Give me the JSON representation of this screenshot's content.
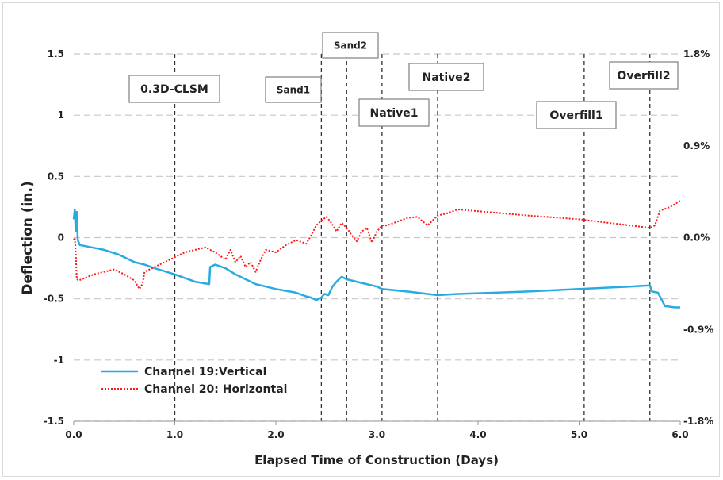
{
  "chart_data": {
    "type": "line",
    "title": "",
    "xlabel": "Elapsed Time of Construction (Days)",
    "ylabel": "Deflection  (in.)",
    "xlim": [
      0,
      6
    ],
    "ylim": [
      -1.5,
      1.5
    ],
    "x_ticks": [
      "0.0",
      "1.0",
      "2.0",
      "3.0",
      "4.0",
      "5.0",
      "6.0"
    ],
    "y_ticks": [
      "1.5",
      "1",
      "0.5",
      "0",
      "-0.5",
      "-1",
      "-1.5"
    ],
    "y2lim": [
      -1.8,
      1.8
    ],
    "y2_ticks": [
      "1.8%",
      "0.9%",
      "0.0%",
      "-0.9%",
      "-1.8%"
    ],
    "grid": true,
    "legend_position": "bottom-left",
    "phases": [
      {
        "label": "0.3D-CLSM",
        "x": 1.0
      },
      {
        "label": "Sand1",
        "x": 2.45
      },
      {
        "label": "Sand2",
        "x": 2.7
      },
      {
        "label": "Native1",
        "x": 3.05
      },
      {
        "label": "Native2",
        "x": 3.6
      },
      {
        "label": "Overfill1",
        "x": 5.05
      },
      {
        "label": "Overfill2",
        "x": 5.7
      }
    ],
    "series": [
      {
        "name": "Channel 19:Vertical",
        "color": "#29abe2",
        "style": "solid",
        "x": [
          0.0,
          0.01,
          0.02,
          0.03,
          0.04,
          0.06,
          0.3,
          0.45,
          0.6,
          0.7,
          0.8,
          1.0,
          1.2,
          1.34,
          1.35,
          1.4,
          1.5,
          1.6,
          1.7,
          1.8,
          1.9,
          2.0,
          2.2,
          2.3,
          2.35,
          2.4,
          2.45,
          2.48,
          2.52,
          2.56,
          2.6,
          2.65,
          2.7,
          2.8,
          3.0,
          3.05,
          3.3,
          3.5,
          3.6,
          3.8,
          4.5,
          5.0,
          5.5,
          5.7,
          5.72,
          5.78,
          5.85,
          5.95,
          6.0
        ],
        "y": [
          0.15,
          0.23,
          0.05,
          0.21,
          -0.02,
          -0.06,
          -0.1,
          -0.14,
          -0.2,
          -0.22,
          -0.25,
          -0.3,
          -0.36,
          -0.38,
          -0.24,
          -0.22,
          -0.25,
          -0.3,
          -0.34,
          -0.38,
          -0.4,
          -0.42,
          -0.45,
          -0.48,
          -0.49,
          -0.51,
          -0.49,
          -0.46,
          -0.47,
          -0.4,
          -0.36,
          -0.32,
          -0.34,
          -0.36,
          -0.4,
          -0.42,
          -0.44,
          -0.46,
          -0.47,
          -0.46,
          -0.44,
          -0.42,
          -0.4,
          -0.39,
          -0.44,
          -0.45,
          -0.56,
          -0.57,
          -0.57
        ]
      },
      {
        "name": "Channel 20: Horizontal",
        "color": "#ff1a1a",
        "style": "dotted",
        "x": [
          0.0,
          0.01,
          0.02,
          0.03,
          0.05,
          0.2,
          0.4,
          0.5,
          0.6,
          0.65,
          0.68,
          0.7,
          0.8,
          0.9,
          1.0,
          1.1,
          1.2,
          1.3,
          1.4,
          1.5,
          1.55,
          1.6,
          1.65,
          1.7,
          1.75,
          1.8,
          1.85,
          1.9,
          2.0,
          2.1,
          2.2,
          2.3,
          2.35,
          2.4,
          2.45,
          2.5,
          2.55,
          2.6,
          2.65,
          2.7,
          2.75,
          2.8,
          2.85,
          2.9,
          2.95,
          3.0,
          3.05,
          3.1,
          3.2,
          3.3,
          3.4,
          3.5,
          3.6,
          3.7,
          3.8,
          4.5,
          5.0,
          5.5,
          5.7,
          5.75,
          5.8,
          5.9,
          6.0
        ],
        "y": [
          -0.02,
          0.0,
          -0.12,
          -0.34,
          -0.35,
          -0.3,
          -0.26,
          -0.3,
          -0.35,
          -0.42,
          -0.38,
          -0.28,
          -0.24,
          -0.2,
          -0.16,
          -0.12,
          -0.1,
          -0.08,
          -0.12,
          -0.18,
          -0.1,
          -0.2,
          -0.15,
          -0.24,
          -0.2,
          -0.28,
          -0.18,
          -0.1,
          -0.12,
          -0.06,
          -0.02,
          -0.05,
          0.02,
          0.1,
          0.14,
          0.17,
          0.12,
          0.05,
          0.12,
          0.08,
          0.02,
          -0.03,
          0.05,
          0.08,
          -0.04,
          0.05,
          0.1,
          0.1,
          0.13,
          0.16,
          0.17,
          0.1,
          0.18,
          0.2,
          0.23,
          0.18,
          0.15,
          0.1,
          0.08,
          0.1,
          0.22,
          0.25,
          0.3
        ]
      }
    ]
  }
}
